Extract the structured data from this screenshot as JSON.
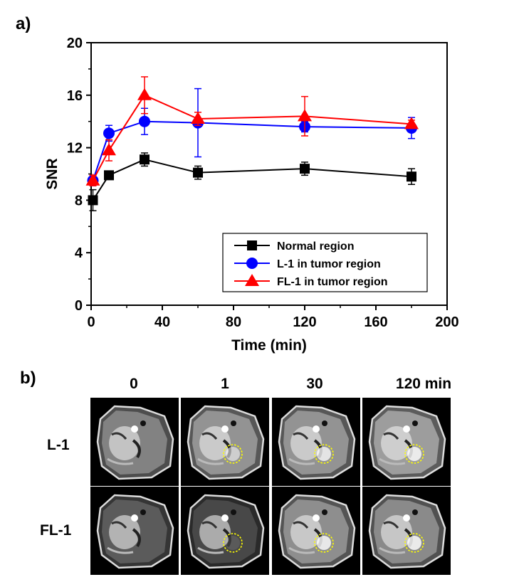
{
  "panel_a_label": "a)",
  "panel_b_label": "b)",
  "chart_data": {
    "type": "line",
    "title": "",
    "xlabel": "Time (min)",
    "ylabel": "SNR",
    "xlim": [
      0,
      200
    ],
    "ylim": [
      0,
      20
    ],
    "xticks": [
      0,
      40,
      80,
      120,
      160,
      200
    ],
    "yticks": [
      0,
      4,
      8,
      12,
      16,
      20
    ],
    "legend_position": "bottom-right",
    "series": [
      {
        "name": "Normal region",
        "color": "#000000",
        "marker": "square",
        "x": [
          1,
          10,
          30,
          60,
          120,
          180
        ],
        "y": [
          8.0,
          9.9,
          11.1,
          10.1,
          10.4,
          9.8
        ],
        "err": [
          0.8,
          0.3,
          0.5,
          0.5,
          0.5,
          0.6
        ]
      },
      {
        "name": "L-1 in tumor region",
        "color": "#0000ff",
        "marker": "circle",
        "x": [
          1,
          10,
          30,
          60,
          120,
          180
        ],
        "y": [
          9.5,
          13.1,
          14.0,
          13.9,
          13.6,
          13.5
        ],
        "err": [
          0.4,
          0.6,
          1.0,
          2.6,
          0.4,
          0.8
        ]
      },
      {
        "name": "FL-1 in tumor region",
        "color": "#ff0000",
        "marker": "triangle",
        "x": [
          1,
          10,
          30,
          60,
          120,
          180
        ],
        "y": [
          9.5,
          11.8,
          16.0,
          14.2,
          14.4,
          13.8
        ],
        "err": [
          0.4,
          0.8,
          1.4,
          0.5,
          1.5,
          0.3
        ]
      }
    ]
  },
  "panel_b": {
    "columns": [
      "0",
      "1",
      "30",
      "120 min"
    ],
    "rows": [
      "L-1",
      "FL-1"
    ],
    "tumor_marker_color": "#ffff00"
  }
}
